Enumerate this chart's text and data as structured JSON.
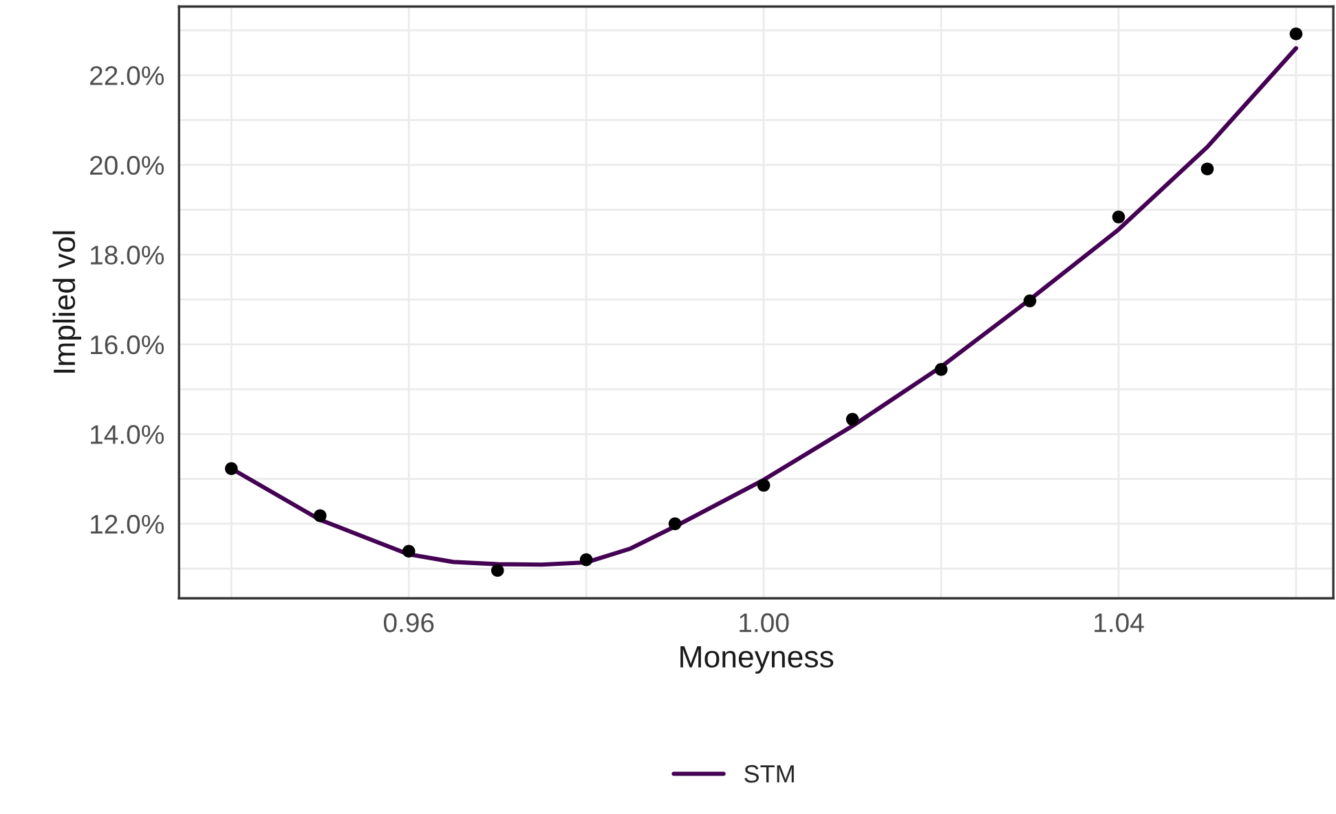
{
  "chart_data": {
    "type": "line",
    "xlabel": "Moneyness",
    "ylabel": "Implied vol",
    "xlim": [
      0.9341,
      1.0642
    ],
    "xticks": [
      {
        "value": 0.96,
        "label": "0.96"
      },
      {
        "value": 1.0,
        "label": "1.00"
      },
      {
        "value": 1.04,
        "label": "1.04"
      }
    ],
    "ylim": [
      10.34,
      23.53
    ],
    "yticks": [
      {
        "value": 12,
        "label": "12.0%"
      },
      {
        "value": 14,
        "label": "14.0%"
      },
      {
        "value": 16,
        "label": "16.0%"
      },
      {
        "value": 18,
        "label": "18.0%"
      },
      {
        "value": 20,
        "label": "20.0%"
      },
      {
        "value": 22,
        "label": "22.0%"
      }
    ],
    "grid": true,
    "legend": "bottom",
    "series": [
      {
        "type": "scatter",
        "color": "#000000",
        "marker": "circle",
        "x": [
          0.94,
          0.95,
          0.96,
          0.97,
          0.98,
          0.99,
          1.0,
          1.01,
          1.02,
          1.03,
          1.04,
          1.05,
          1.06
        ],
        "values": [
          13.23,
          12.18,
          11.39,
          10.96,
          11.2,
          12.0,
          12.86,
          14.33,
          15.44,
          16.97,
          18.84,
          19.91,
          22.92
        ]
      },
      {
        "name": "STM",
        "color": "#440154",
        "line_style": "solid",
        "x": [
          0.94,
          0.95,
          0.96,
          0.965,
          0.97,
          0.975,
          0.98,
          0.985,
          0.99,
          1.0,
          1.01,
          1.02,
          1.03,
          1.04,
          1.05,
          1.06
        ],
        "values": [
          13.23,
          12.09,
          11.32,
          11.15,
          11.1,
          11.09,
          11.14,
          11.45,
          11.94,
          12.98,
          14.18,
          15.5,
          17.0,
          18.56,
          20.4,
          22.6
        ]
      }
    ]
  }
}
